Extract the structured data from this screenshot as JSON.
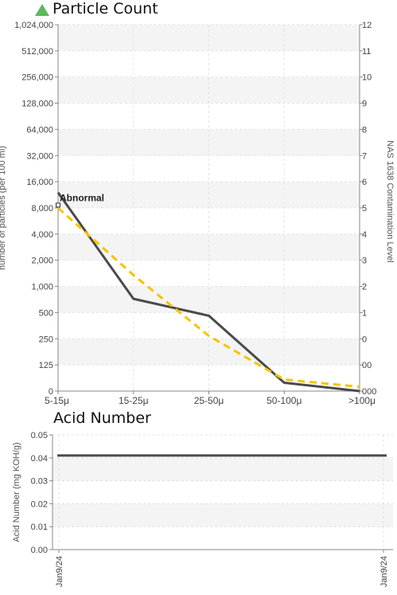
{
  "particle_panel": {
    "title": "Particle Count",
    "status_icon": "up-triangle-icon",
    "status_color": "#5cb85c"
  },
  "acid_panel": {
    "title": "Acid Number"
  },
  "chart_data": [
    {
      "type": "line",
      "title": "Particle Count",
      "xlabel": "",
      "ylabel": "number of particles (per 100 ml)",
      "y2label": "NAS 1638 Contamination Level",
      "yscale": "log2",
      "categories": [
        "5-15μ",
        "15-25μ",
        "25-50μ",
        "50-100μ",
        ">100μ"
      ],
      "y_ticks": [
        "1,024,000",
        "512,000",
        "256,000",
        "128,000",
        "64,000",
        "32,000",
        "16,000",
        "8,000",
        "4,000",
        "2,000",
        "1,000",
        "500",
        "250",
        "125",
        "0"
      ],
      "y2_ticks": [
        "12",
        "11",
        "10",
        "9",
        "8",
        "7",
        "6",
        "5",
        "4",
        "3",
        "2",
        "1",
        "0",
        "00",
        "000"
      ],
      "series": [
        {
          "name": "",
          "color": "#4a4a4a",
          "dashed": false,
          "values": [
            12000,
            720,
            460,
            78,
            62
          ]
        },
        {
          "name": "",
          "color": "#f5c400",
          "dashed": true,
          "values": [
            8000,
            1350,
            270,
            85,
            70
          ]
        }
      ],
      "annotations": [
        {
          "text": "Abnormal",
          "category": "5-15μ",
          "value": 9000
        }
      ],
      "grid": true
    },
    {
      "type": "line",
      "title": "Acid Number",
      "xlabel": "",
      "ylabel": "Acid Number (mg KOH/g)",
      "ylim": [
        0,
        0.05
      ],
      "y_ticks": [
        "0.05",
        "0.04",
        "0.03",
        "0.02",
        "0.01",
        "0.00"
      ],
      "x_ticks": [
        "Jan9/24",
        "Jan9/24"
      ],
      "series": [
        {
          "name": "",
          "color": "#4a4a4a",
          "values": [
            0.041,
            0.041
          ]
        }
      ],
      "grid": true
    }
  ]
}
